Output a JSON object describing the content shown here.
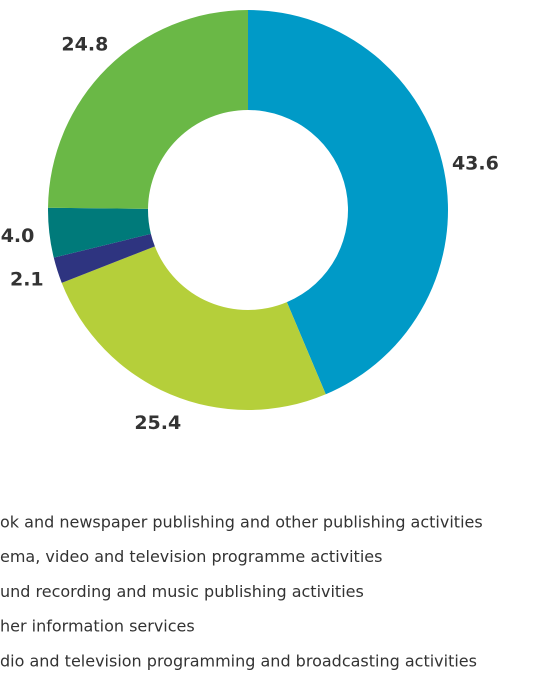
{
  "chart_data": {
    "type": "pie",
    "categories": [
      "ok and newspaper publishing and other publishing activities",
      "ema, video and television programme activities",
      "und recording and music publishing activities",
      "her information services",
      "dio and television programming and broadcasting activities"
    ],
    "values": [
      43.6,
      25.4,
      2.1,
      4.0,
      24.8
    ],
    "value_labels": [
      "43.6",
      "25.4",
      "2.1",
      "4.0",
      "24.8"
    ],
    "colors": [
      "#009ac7",
      "#b5cf3a",
      "#2e3480",
      "#007a7a",
      "#6ab846"
    ]
  }
}
